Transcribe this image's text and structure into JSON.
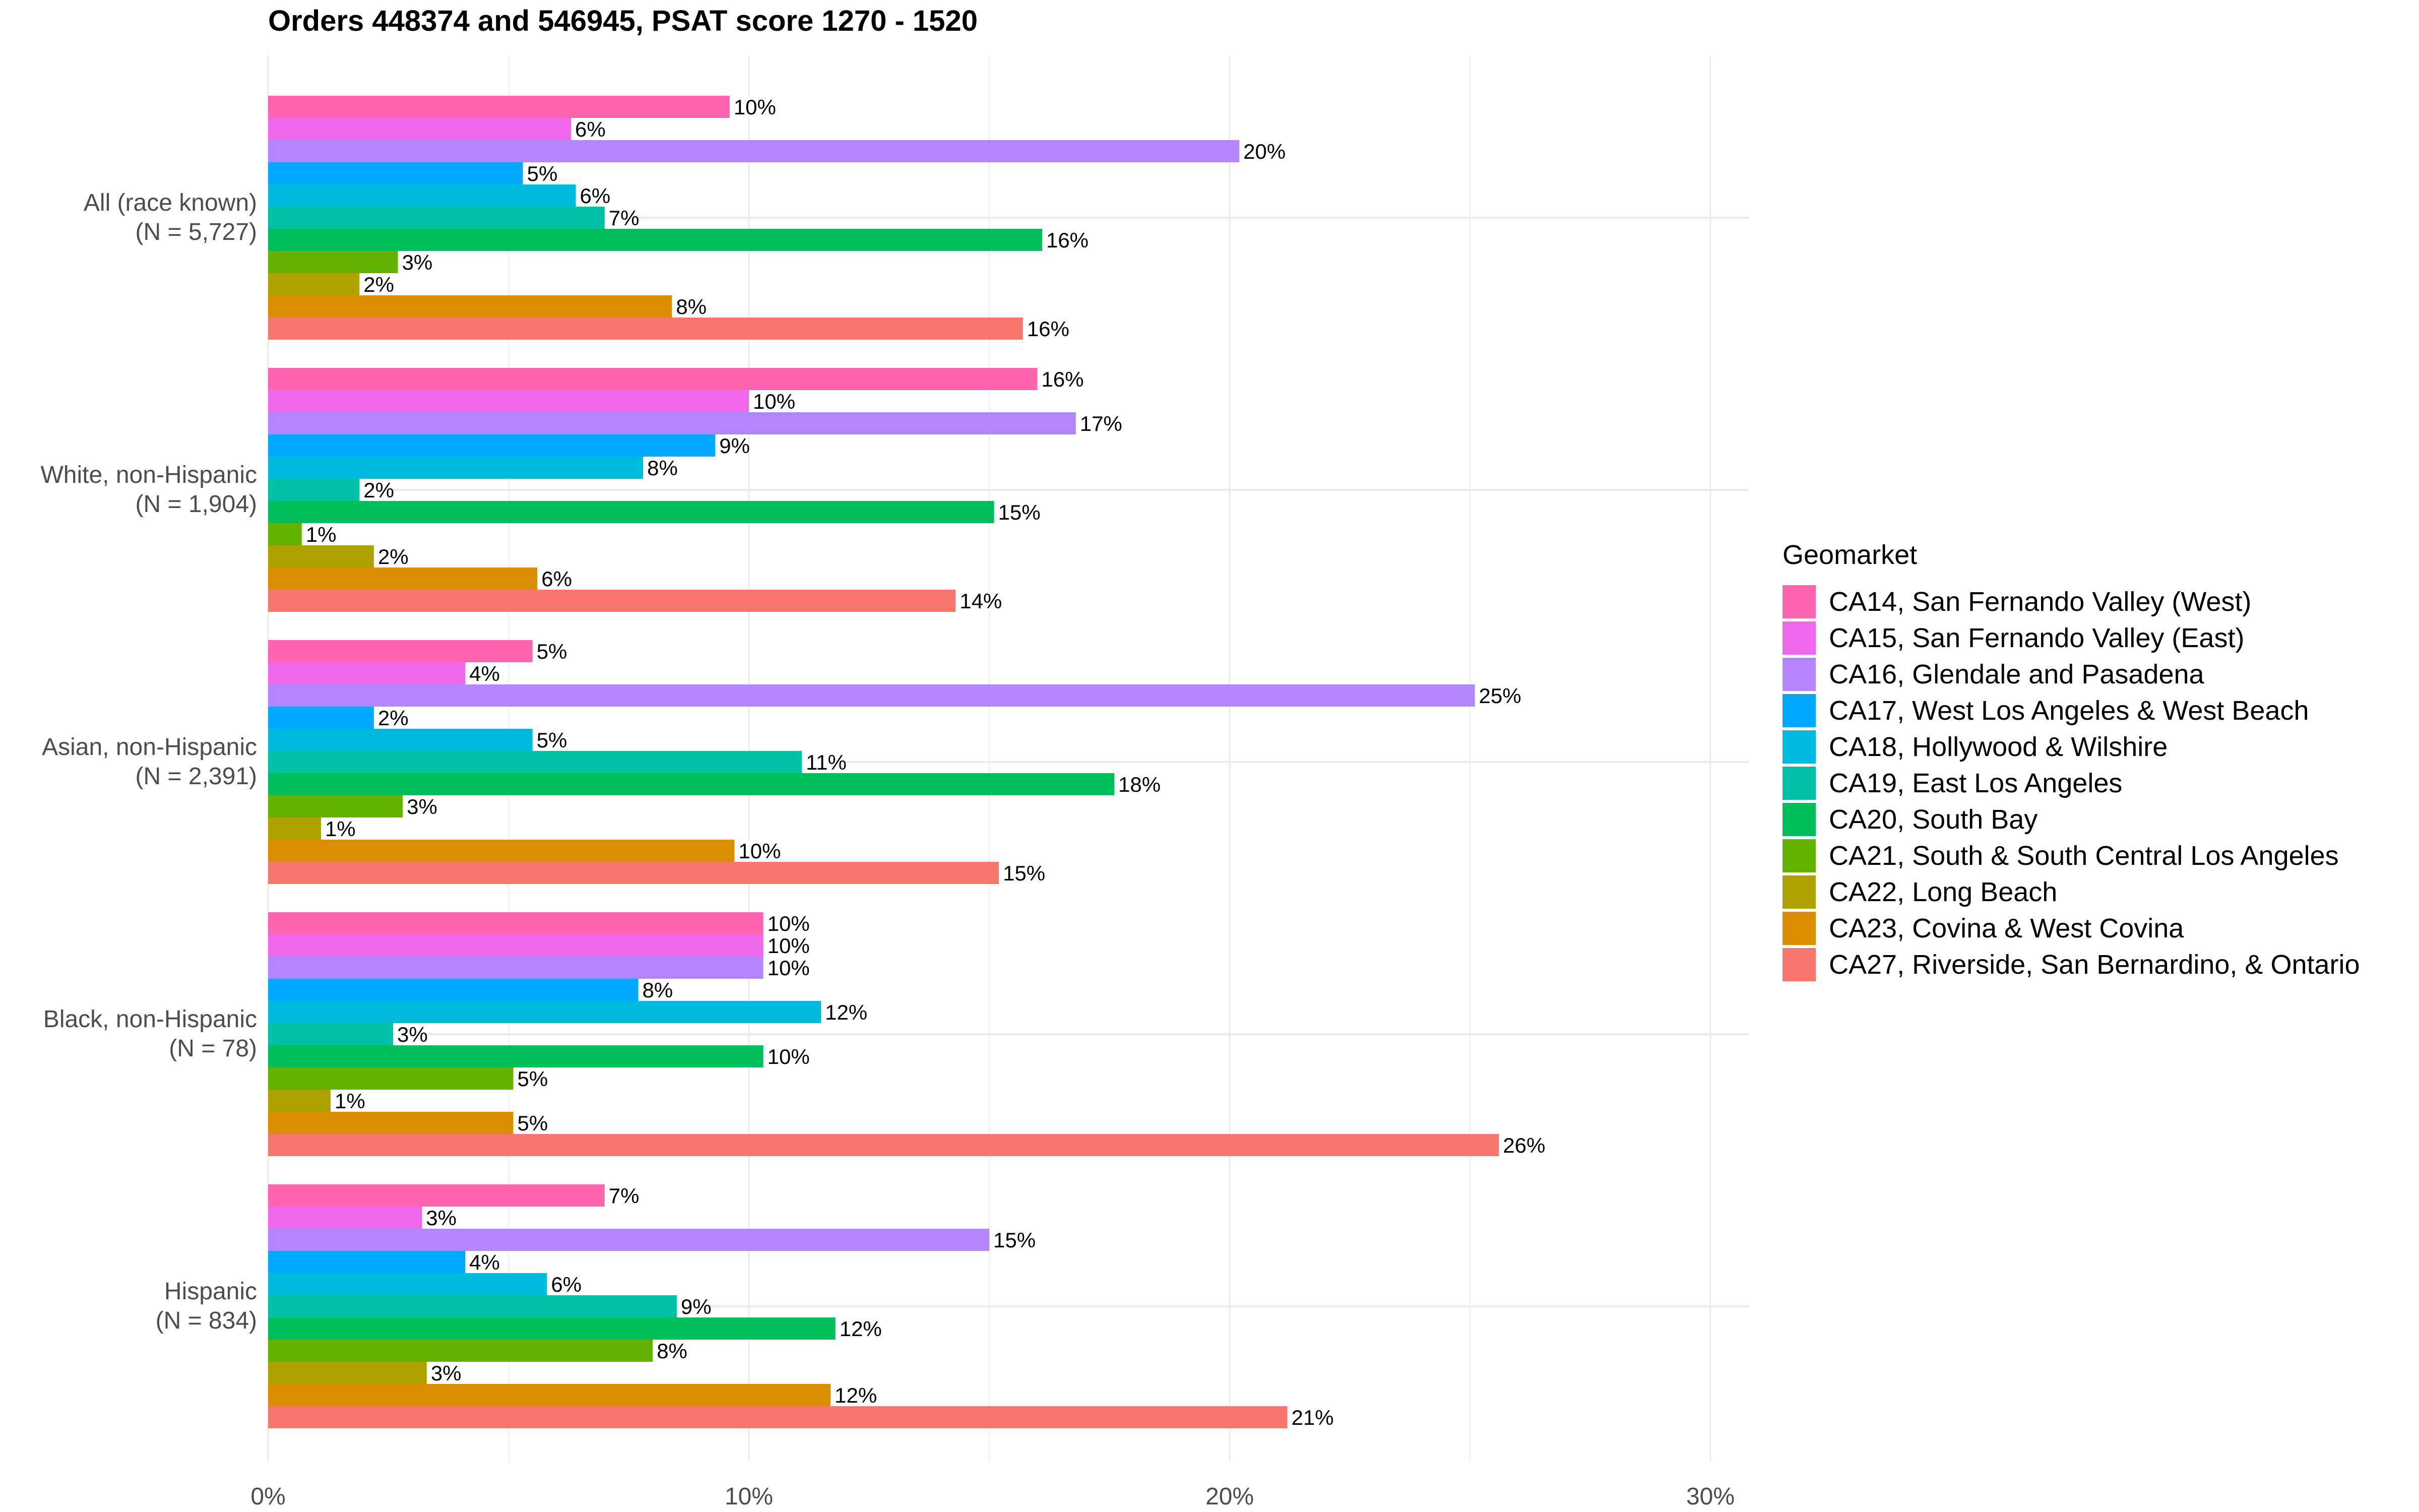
{
  "chart_data": {
    "type": "bar",
    "orientation": "horizontal",
    "title": "Orders 448374 and 546945, PSAT score 1270 - 1520",
    "xlabel": "",
    "ylabel": "",
    "xlim": [
      0,
      30
    ],
    "x_ticks": [
      "0%",
      "10%",
      "20%",
      "30%"
    ],
    "x_tick_values": [
      0,
      10,
      20,
      30
    ],
    "grid": true,
    "legend": {
      "title": "Geomarket",
      "position": "right"
    },
    "categories": [
      "All (race known)\n(N = 5,727)",
      "White, non-Hispanic\n(N = 1,904)",
      "Asian, non-Hispanic\n(N = 2,391)",
      "Black, non-Hispanic\n(N = 78)",
      "Hispanic\n(N = 834)"
    ],
    "category_lines": [
      [
        "All (race known)",
        "(N = 5,727)"
      ],
      [
        "White, non-Hispanic",
        "(N = 1,904)"
      ],
      [
        "Asian, non-Hispanic",
        "(N = 2,391)"
      ],
      [
        "Black, non-Hispanic",
        "(N = 78)"
      ],
      [
        "Hispanic",
        "(N = 834)"
      ]
    ],
    "series": [
      {
        "name": "CA14, San Fernando Valley (West)",
        "color": "#FF64B0",
        "values": [
          9.6,
          16.0,
          5.5,
          10.3,
          7.0
        ],
        "labels": [
          "10%",
          "16%",
          "5%",
          "10%",
          "7%"
        ]
      },
      {
        "name": "CA15, San Fernando Valley (East)",
        "color": "#EF67EB",
        "values": [
          6.3,
          10.0,
          4.1,
          10.3,
          3.2
        ],
        "labels": [
          "6%",
          "10%",
          "4%",
          "10%",
          "3%"
        ]
      },
      {
        "name": "CA16, Glendale and Pasadena",
        "color": "#B385FF",
        "values": [
          20.2,
          16.8,
          25.1,
          10.3,
          15.0
        ],
        "labels": [
          "20%",
          "17%",
          "25%",
          "10%",
          "15%"
        ]
      },
      {
        "name": "CA17, West Los Angeles & West Beach",
        "color": "#00A9FF",
        "values": [
          5.3,
          9.3,
          2.2,
          7.7,
          4.1
        ],
        "labels": [
          "5%",
          "9%",
          "2%",
          "8%",
          "4%"
        ]
      },
      {
        "name": "CA18, Hollywood & Wilshire",
        "color": "#00BADE",
        "values": [
          6.4,
          7.8,
          5.5,
          11.5,
          5.8
        ],
        "labels": [
          "6%",
          "8%",
          "5%",
          "12%",
          "6%"
        ]
      },
      {
        "name": "CA19, East Los Angeles",
        "color": "#00C1A7",
        "values": [
          7.0,
          1.9,
          11.1,
          2.6,
          8.5
        ],
        "labels": [
          "7%",
          "2%",
          "11%",
          "3%",
          "9%"
        ]
      },
      {
        "name": "CA20, South Bay",
        "color": "#00BE5C",
        "values": [
          16.1,
          15.1,
          17.6,
          10.3,
          11.8
        ],
        "labels": [
          "16%",
          "15%",
          "18%",
          "10%",
          "12%"
        ]
      },
      {
        "name": "CA21, South & South Central Los Angeles",
        "color": "#64B200",
        "values": [
          2.7,
          0.7,
          2.8,
          5.1,
          8.0
        ],
        "labels": [
          "3%",
          "1%",
          "3%",
          "5%",
          "8%"
        ]
      },
      {
        "name": "CA22, Long Beach",
        "color": "#AEA200",
        "values": [
          1.9,
          2.2,
          1.1,
          1.3,
          3.3
        ],
        "labels": [
          "2%",
          "2%",
          "1%",
          "1%",
          "3%"
        ]
      },
      {
        "name": "CA23, Covina & West Covina",
        "color": "#DB8E00",
        "values": [
          8.4,
          5.6,
          9.7,
          5.1,
          11.7
        ],
        "labels": [
          "8%",
          "6%",
          "10%",
          "5%",
          "12%"
        ]
      },
      {
        "name": "CA27, Riverside, San Bernardino, & Ontario",
        "color": "#F8766D",
        "values": [
          15.7,
          14.3,
          15.2,
          25.6,
          21.2
        ],
        "labels": [
          "16%",
          "14%",
          "15%",
          "26%",
          "21%"
        ]
      }
    ]
  }
}
